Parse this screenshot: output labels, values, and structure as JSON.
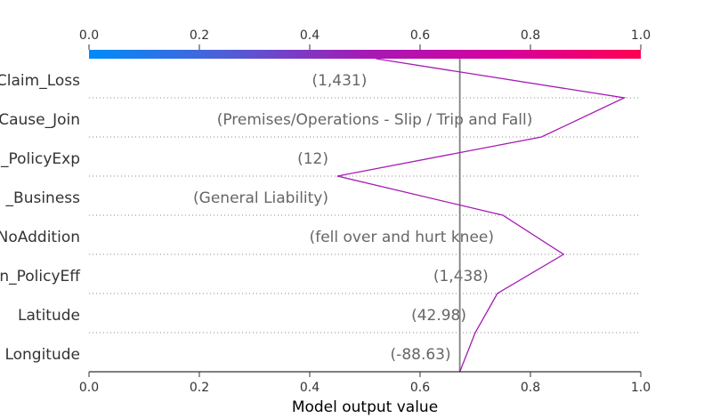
{
  "chart_data": {
    "type": "decision_plot",
    "xlabel": "Model output value",
    "xlim": [
      0.0,
      1.0
    ],
    "x_ticks": [
      "0.0",
      "0.2",
      "0.4",
      "0.6",
      "0.8",
      "1.0"
    ],
    "base_value": 0.672,
    "colormap": [
      "#008bfb",
      "#4f5ed6",
      "#a51ab4",
      "#d600a0",
      "#ff0051"
    ],
    "line_color": "#a51ab4",
    "features": [
      {
        "name": "Claim_Loss",
        "value": "(1,431)"
      },
      {
        "name": "Cause_Join",
        "value": "(Premises/Operations - Slip / Trip and Fall)"
      },
      {
        "name": "_PolicyExp",
        "value": "(12)"
      },
      {
        "name": "_Business",
        "value": "(General Liability)"
      },
      {
        "name": "NoAddition",
        "value": "(fell over and hurt knee)"
      },
      {
        "name": "n_PolicyEff",
        "value": "(1,438)"
      },
      {
        "name": "Latitude",
        "value": "(42.98)"
      },
      {
        "name": "Longitude",
        "value": "(-88.63)"
      }
    ],
    "path_top_to_bottom": [
      0.52,
      0.97,
      0.82,
      0.45,
      0.75,
      0.86,
      0.74,
      0.7,
      0.672
    ]
  }
}
